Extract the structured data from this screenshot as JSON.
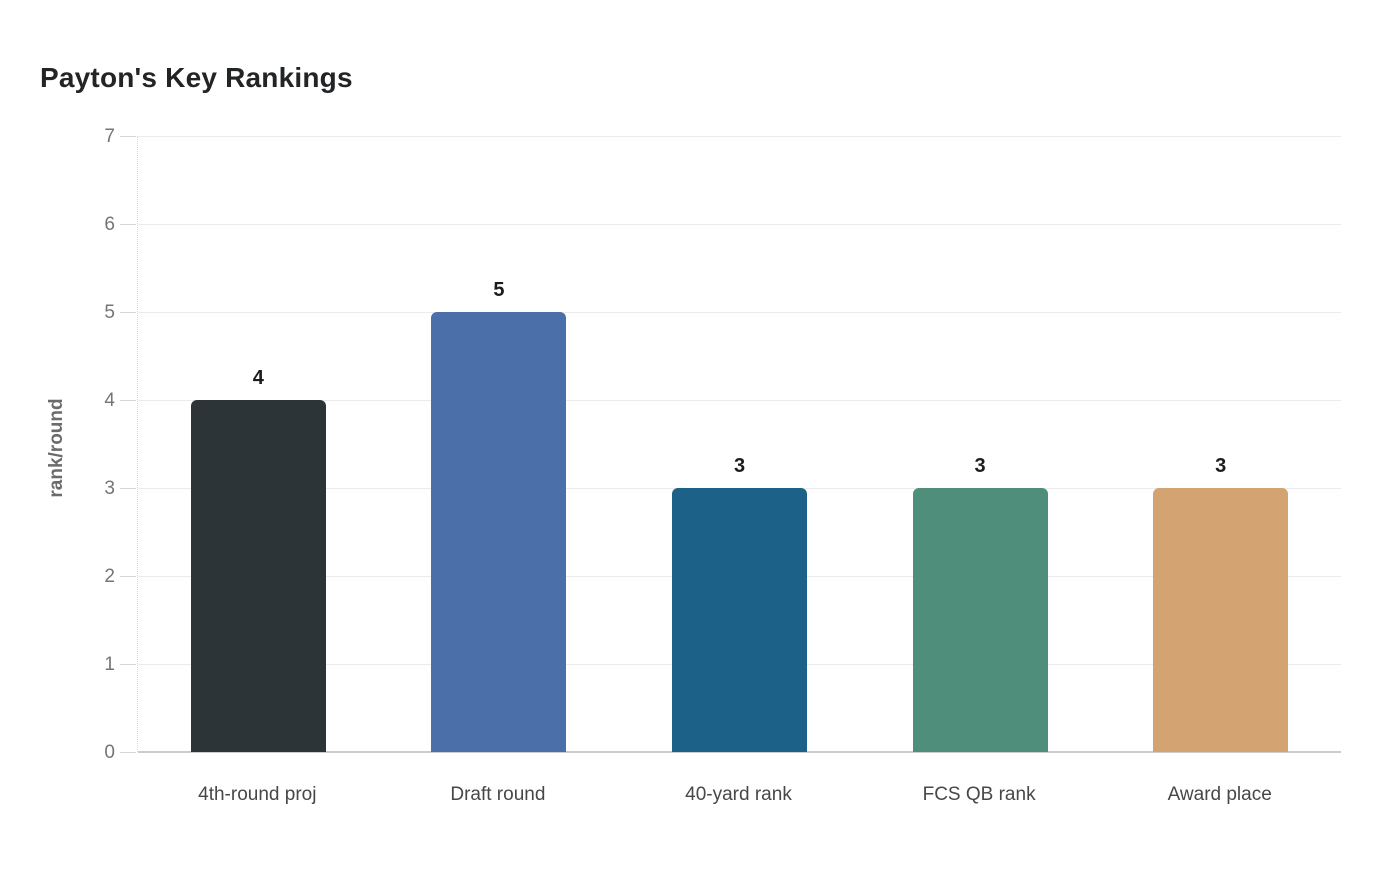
{
  "chart_data": {
    "type": "bar",
    "title": "Payton's Key Rankings",
    "categories": [
      "4th-round proj",
      "Draft round",
      "40-yard rank",
      "FCS QB rank",
      "Award place"
    ],
    "values": [
      4,
      5,
      3,
      3,
      3
    ],
    "value_labels": [
      "4",
      "5",
      "3",
      "3",
      "3"
    ],
    "bar_colors": [
      "#2c3437",
      "#4b70a9",
      "#1c6288",
      "#4e8e7a",
      "#d3a371"
    ],
    "xlabel": "",
    "ylabel": "rank/round",
    "ylim": [
      0,
      7
    ],
    "yticks": [
      0,
      1,
      2,
      3,
      4,
      5,
      6,
      7
    ],
    "grid": "horizontal",
    "legend": "none",
    "colors": {
      "title_text": "#222426",
      "axis_label_text": "#6b6b6b",
      "tick_text": "#757575",
      "category_text": "#474747",
      "value_label_text": "#1a1c1e",
      "gridline": "#ebebeb",
      "baseline": "#cccccc",
      "background": "#ffffff"
    }
  }
}
